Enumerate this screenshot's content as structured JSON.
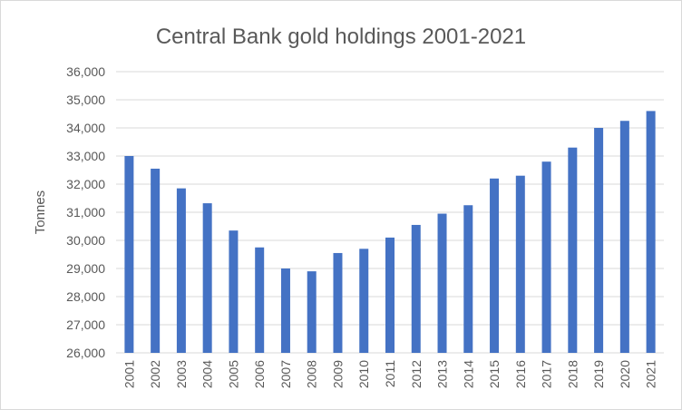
{
  "chart_data": {
    "type": "bar",
    "title": "Central Bank gold holdings 2001-2021",
    "xlabel": "",
    "ylabel": "Tonnes",
    "ylim": [
      26000,
      36000
    ],
    "y_ticks": [
      "26,000",
      "27,000",
      "28,000",
      "29,000",
      "30,000",
      "31,000",
      "32,000",
      "33,000",
      "34,000",
      "35,000",
      "36,000"
    ],
    "grid": true,
    "legend": "none",
    "bar_color": "#4472c4",
    "categories": [
      "2001",
      "2002",
      "2003",
      "2004",
      "2005",
      "2006",
      "2007",
      "2008",
      "2009",
      "2010",
      "2011",
      "2012",
      "2013",
      "2014",
      "2015",
      "2016",
      "2017",
      "2018",
      "2019",
      "2020",
      "2021"
    ],
    "values": [
      33000,
      32550,
      31850,
      31320,
      30350,
      29750,
      29000,
      28900,
      29550,
      29700,
      30100,
      30550,
      30950,
      31250,
      32200,
      32300,
      32800,
      33300,
      34000,
      34250,
      34600
    ]
  }
}
